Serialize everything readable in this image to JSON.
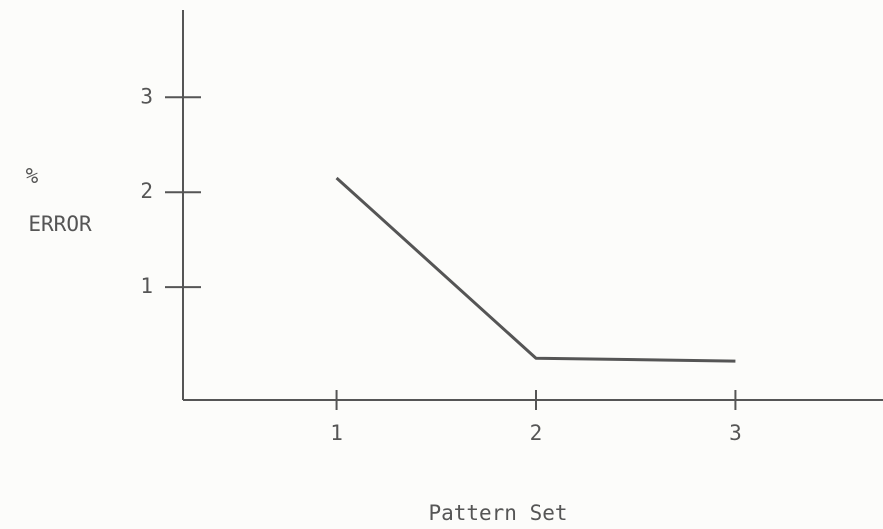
{
  "chart_data": {
    "type": "line",
    "ylabel": [
      "%",
      "ERROR"
    ],
    "xlabel": "Pattern Set",
    "x": [
      1,
      2,
      3
    ],
    "series": [
      {
        "color": "#555555",
        "values": [
          2.15,
          0.25,
          0.22
        ]
      }
    ],
    "xlim": [
      0.23,
      3.74
    ],
    "xticks": [
      1,
      2,
      3
    ],
    "ylim": [
      -0.19,
      3.92
    ],
    "yticks": [
      1,
      2,
      3
    ]
  }
}
